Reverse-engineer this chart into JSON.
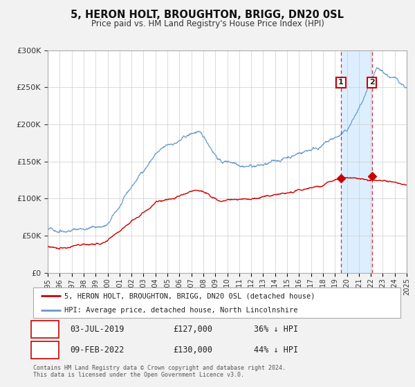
{
  "title": "5, HERON HOLT, BROUGHTON, BRIGG, DN20 0SL",
  "subtitle": "Price paid vs. HM Land Registry's House Price Index (HPI)",
  "legend_label_red": "5, HERON HOLT, BROUGHTON, BRIGG, DN20 0SL (detached house)",
  "legend_label_blue": "HPI: Average price, detached house, North Lincolnshire",
  "annotation1_label": "1",
  "annotation1_date": "03-JUL-2019",
  "annotation1_price": "£127,000",
  "annotation1_hpi": "36% ↓ HPI",
  "annotation2_label": "2",
  "annotation2_date": "09-FEB-2022",
  "annotation2_price": "£130,000",
  "annotation2_hpi": "44% ↓ HPI",
  "footnote": "Contains HM Land Registry data © Crown copyright and database right 2024.\nThis data is licensed under the Open Government Licence v3.0.",
  "ylim": [
    0,
    300000
  ],
  "yticks": [
    0,
    50000,
    100000,
    150000,
    200000,
    250000,
    300000
  ],
  "color_red": "#cc0000",
  "color_blue": "#6699cc",
  "color_shaded": "#ddeeff",
  "background_color": "#f2f2f2",
  "plot_bg_color": "#ffffff",
  "grid_color": "#cccccc",
  "sale1_date_num": 2019.5,
  "sale1_value": 127000,
  "sale2_date_num": 2022.1,
  "sale2_value": 130000,
  "xmin": 1995,
  "xmax": 2025
}
